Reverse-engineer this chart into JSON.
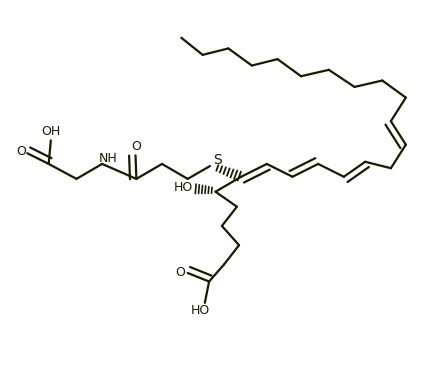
{
  "background": "#ffffff",
  "line_color": "#1a1a00",
  "line_width": 1.6,
  "figsize": [
    4.31,
    3.92
  ],
  "dpi": 100,
  "xlim": [
    0,
    100
  ],
  "ylim": [
    0,
    91
  ]
}
